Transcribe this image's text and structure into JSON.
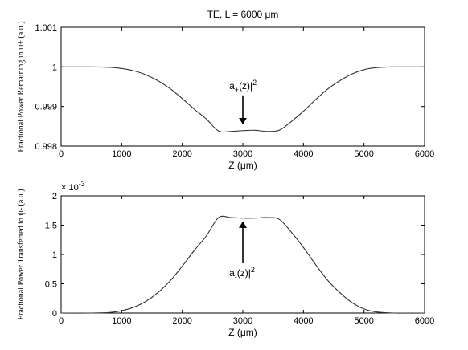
{
  "chart_data": [
    {
      "type": "line",
      "title": "TE, L = 6000 μm",
      "xlabel": "Z (μm)",
      "ylabel": "Fractional Power Remaining in ψ+ (a.u.)",
      "xlim": [
        0,
        6000
      ],
      "ylim": [
        0.998,
        1.001
      ],
      "xticks": [
        0,
        1000,
        2000,
        3000,
        4000,
        5000,
        6000
      ],
      "yticks": [
        0.998,
        0.999,
        1,
        1.001
      ],
      "ytick_labels": [
        "0.998",
        "0.999",
        "1",
        "1.001"
      ],
      "series": [
        {
          "x": [
            0,
            500,
            800,
            1000,
            1200,
            1400,
            1600,
            1800,
            2000,
            2200,
            2400,
            2600,
            2800,
            3000,
            3200,
            3400,
            3600,
            3800,
            4000,
            4200,
            4400,
            4600,
            4800,
            5000,
            5200,
            5500,
            6000
          ],
          "values": [
            1.0,
            1.0,
            0.99999,
            0.99996,
            0.9999,
            0.9998,
            0.99965,
            0.99945,
            0.9992,
            0.99893,
            0.99868,
            0.99838,
            0.99837,
            0.99839,
            0.9984,
            0.99837,
            0.9984,
            0.99862,
            0.99888,
            0.99917,
            0.99944,
            0.99965,
            0.99982,
            0.99993,
            0.99998,
            1.0,
            1.0
          ]
        }
      ],
      "annotation": {
        "text": "|a+(z)|²",
        "base": "|a",
        "sub": "+",
        "mid": "(z)|",
        "sup": "2",
        "x": 3000,
        "arrow_from": 0.99928,
        "arrow_to": 0.99857
      }
    },
    {
      "type": "line",
      "title": "",
      "xlabel": "Z (μm)",
      "ylabel": "Fractional Power Transferred to ψ- (a.u.)",
      "xlim": [
        0,
        6000
      ],
      "ylim": [
        0,
        2
      ],
      "scale_label": "× 10",
      "scale_exponent": "-3",
      "xticks": [
        0,
        1000,
        2000,
        3000,
        4000,
        5000,
        6000
      ],
      "yticks": [
        0,
        0.5,
        1,
        1.5,
        2
      ],
      "ytick_labels": [
        "0",
        "0.5",
        "1",
        "1.5",
        "2"
      ],
      "series": [
        {
          "x": [
            0,
            500,
            800,
            1000,
            1200,
            1400,
            1600,
            1800,
            2000,
            2200,
            2400,
            2600,
            2800,
            3000,
            3200,
            3400,
            3600,
            3800,
            4000,
            4200,
            4400,
            4600,
            4800,
            5000,
            5200,
            5500,
            6000
          ],
          "values": [
            0.0,
            0.0,
            0.01,
            0.04,
            0.1,
            0.2,
            0.35,
            0.55,
            0.8,
            1.07,
            1.32,
            1.63,
            1.63,
            1.62,
            1.62,
            1.63,
            1.6,
            1.38,
            1.12,
            0.83,
            0.56,
            0.35,
            0.18,
            0.07,
            0.02,
            0.0,
            0.0
          ]
        }
      ],
      "annotation": {
        "text": "|a-(z)|²",
        "base": "|a",
        "sub": "-",
        "mid": "(z)|",
        "sup": "2",
        "x": 3000,
        "arrow_from": 0.85,
        "arrow_to": 1.55
      }
    }
  ]
}
